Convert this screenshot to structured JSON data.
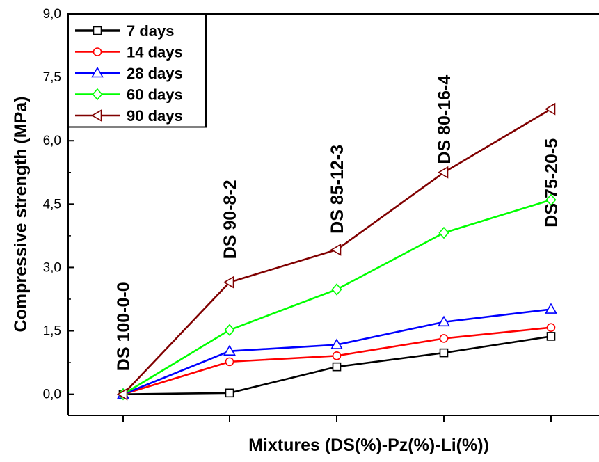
{
  "chart_data": {
    "type": "line",
    "title": "",
    "xlabel": "Mixtures (DS(%)-Pz(%)-Li(%))",
    "ylabel": "Compressive strength (MPa)",
    "ylim": [
      -0.5,
      9.0
    ],
    "yticks": [
      "0,0",
      "1,5",
      "3,0",
      "4,5",
      "6,0",
      "7,5",
      "9,0"
    ],
    "yticks_values": [
      0,
      1.5,
      3.0,
      4.5,
      6.0,
      7.5,
      9.0
    ],
    "categories": [
      "DS 100-0-0",
      "DS 90-8-2",
      "DS 85-12-3",
      "DS 80-16-4",
      "DS 75-20-5"
    ],
    "legend_position": "top-left",
    "grid": false,
    "series": [
      {
        "name": "7 days",
        "color": "#000000",
        "marker": "square",
        "values": [
          0.0,
          0.03,
          0.65,
          0.98,
          1.37
        ]
      },
      {
        "name": "14 days",
        "color": "#ff0000",
        "marker": "circle",
        "values": [
          0.0,
          0.77,
          0.91,
          1.32,
          1.58
        ]
      },
      {
        "name": "28 days",
        "color": "#0000ff",
        "marker": "triangle-up",
        "values": [
          0.0,
          1.02,
          1.17,
          1.71,
          2.01
        ]
      },
      {
        "name": "60 days",
        "color": "#00ff00",
        "marker": "diamond",
        "values": [
          0.0,
          1.52,
          2.48,
          3.82,
          4.6
        ]
      },
      {
        "name": "90 days",
        "color": "#800000",
        "marker": "triangle-left",
        "values": [
          0.0,
          2.65,
          3.42,
          5.25,
          6.75
        ]
      }
    ],
    "annotations": [
      {
        "text": "DS 100-0-0",
        "category_index": 0,
        "anchor_y": 0.55
      },
      {
        "text": "DS 90-8-2",
        "category_index": 1,
        "anchor_y": 3.2
      },
      {
        "text": "DS 85-12-3",
        "category_index": 2,
        "anchor_y": 3.8
      },
      {
        "text": "DS 80-16-4",
        "category_index": 3,
        "anchor_y": 5.45
      },
      {
        "text": "DS 75-20-5",
        "category_index": 4,
        "anchor_y": 3.95
      }
    ]
  }
}
